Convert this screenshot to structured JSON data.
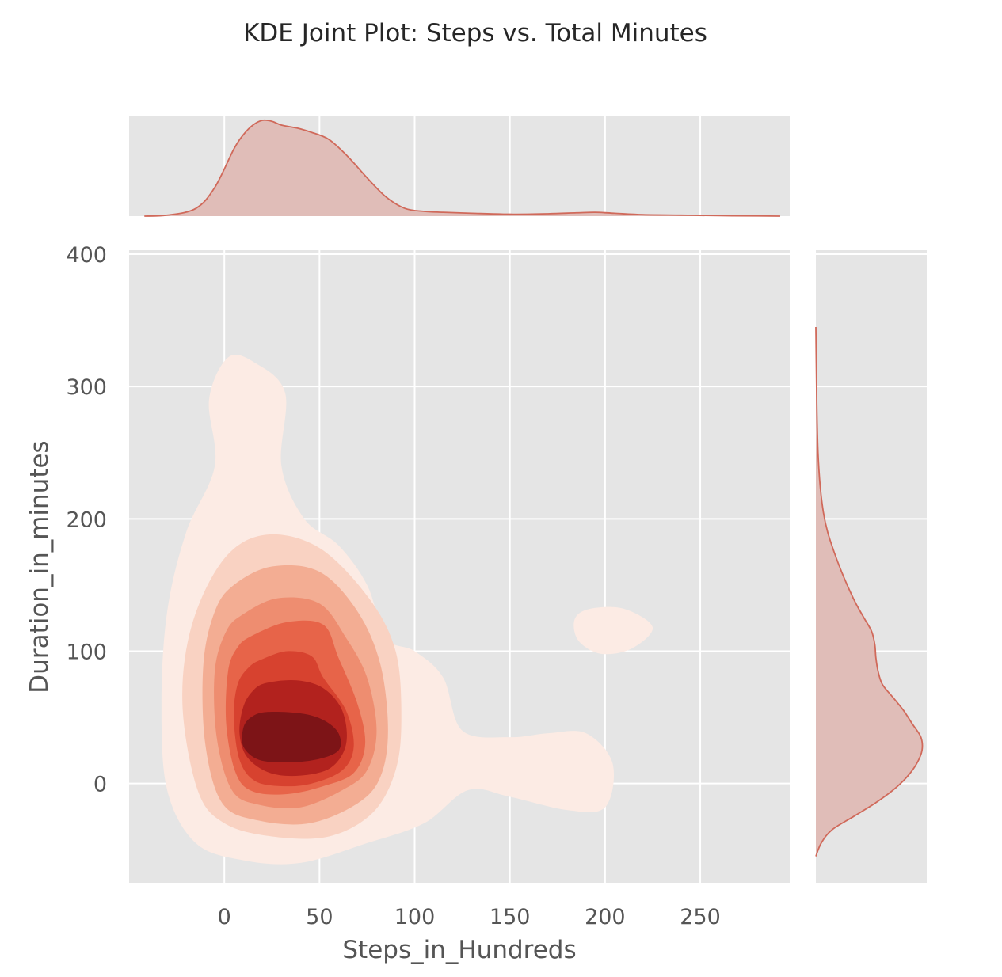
{
  "chart_data": {
    "type": "kde-joint",
    "title": "KDE Joint Plot: Steps vs. Total Minutes",
    "xlabel": "Steps_in_Hundreds",
    "ylabel": "Duration_in_minutes",
    "xlim": [
      -50,
      297
    ],
    "ylim": [
      -75,
      403
    ],
    "xticks": [
      0,
      50,
      100,
      150,
      200,
      250
    ],
    "yticks": [
      0,
      100,
      200,
      300,
      400
    ],
    "grid": true,
    "colors": {
      "panel_bg": "#e5e5e5",
      "grid": "#ffffff",
      "marginal_line": "#d0695a",
      "marginal_fill": "#e0bdb8",
      "levels": [
        "#fcebe4",
        "#f9d2c2",
        "#f3ad93",
        "#ee8d70",
        "#e76449",
        "#d7422f",
        "#b2221e",
        "#7d1417"
      ]
    },
    "joint": {
      "mode_peak": [
        25,
        35
      ],
      "secondary_peak": [
        205,
        118
      ],
      "levels": [
        {
          "level": 1,
          "outline": [
            [
              -8,
              290
            ],
            [
              2,
              322
            ],
            [
              16,
              318
            ],
            [
              32,
              295
            ],
            [
              30,
              240
            ],
            [
              42,
              200
            ],
            [
              60,
              180
            ],
            [
              75,
              150
            ],
            [
              85,
              110
            ],
            [
              100,
              100
            ],
            [
              115,
              80
            ],
            [
              125,
              40
            ],
            [
              150,
              35
            ],
            [
              170,
              38
            ],
            [
              190,
              38
            ],
            [
              204,
              15
            ],
            [
              200,
              -18
            ],
            [
              180,
              -20
            ],
            [
              150,
              -10
            ],
            [
              128,
              -5
            ],
            [
              105,
              -30
            ],
            [
              75,
              -45
            ],
            [
              40,
              -60
            ],
            [
              10,
              -58
            ],
            [
              -15,
              -45
            ],
            [
              -30,
              -5
            ],
            [
              -33,
              60
            ],
            [
              -30,
              130
            ],
            [
              -20,
              190
            ],
            [
              -5,
              240
            ]
          ]
        },
        {
          "level": 1,
          "outline": [
            [
              192,
              132
            ],
            [
              210,
              132
            ],
            [
              225,
              118
            ],
            [
              214,
              102
            ],
            [
              198,
              98
            ],
            [
              186,
              108
            ],
            [
              184,
              124
            ]
          ]
        },
        {
          "level": 2,
          "outline": [
            [
              0,
              170
            ],
            [
              22,
              188
            ],
            [
              50,
              178
            ],
            [
              76,
              140
            ],
            [
              90,
              100
            ],
            [
              93,
              50
            ],
            [
              90,
              10
            ],
            [
              78,
              -22
            ],
            [
              55,
              -40
            ],
            [
              25,
              -40
            ],
            [
              0,
              -30
            ],
            [
              -14,
              -5
            ],
            [
              -22,
              60
            ],
            [
              -17,
              120
            ]
          ]
        },
        {
          "level": 3,
          "outline": [
            [
              5,
              150
            ],
            [
              25,
              164
            ],
            [
              50,
              160
            ],
            [
              70,
              130
            ],
            [
              82,
              90
            ],
            [
              86,
              40
            ],
            [
              82,
              5
            ],
            [
              70,
              -15
            ],
            [
              45,
              -30
            ],
            [
              18,
              -28
            ],
            [
              -1,
              -15
            ],
            [
              -10,
              30
            ],
            [
              -11,
              90
            ],
            [
              -5,
              130
            ]
          ]
        },
        {
          "level": 4,
          "outline": [
            [
              10,
              128
            ],
            [
              28,
              140
            ],
            [
              50,
              136
            ],
            [
              64,
              110
            ],
            [
              75,
              80
            ],
            [
              80,
              40
            ],
            [
              75,
              10
            ],
            [
              62,
              -5
            ],
            [
              40,
              -18
            ],
            [
              18,
              -16
            ],
            [
              4,
              -5
            ],
            [
              -4,
              35
            ],
            [
              -5,
              85
            ],
            [
              1,
              115
            ]
          ]
        },
        {
          "level": 5,
          "outline": [
            [
              15,
              112
            ],
            [
              33,
              122
            ],
            [
              52,
              120
            ],
            [
              60,
              95
            ],
            [
              70,
              60
            ],
            [
              74,
              30
            ],
            [
              68,
              8
            ],
            [
              52,
              -2
            ],
            [
              33,
              -8
            ],
            [
              15,
              -6
            ],
            [
              6,
              8
            ],
            [
              1,
              45
            ],
            [
              2,
              85
            ],
            [
              7,
              103
            ]
          ]
        },
        {
          "level": 6,
          "outline": [
            [
              20,
              94
            ],
            [
              33,
              100
            ],
            [
              46,
              96
            ],
            [
              52,
              80
            ],
            [
              64,
              55
            ],
            [
              68,
              28
            ],
            [
              62,
              10
            ],
            [
              46,
              0
            ],
            [
              30,
              -2
            ],
            [
              16,
              2
            ],
            [
              8,
              18
            ],
            [
              5,
              50
            ],
            [
              7,
              75
            ],
            [
              13,
              88
            ]
          ]
        },
        {
          "level": 7,
          "outline": [
            [
              22,
              76
            ],
            [
              38,
              78
            ],
            [
              52,
              72
            ],
            [
              62,
              55
            ],
            [
              64,
              30
            ],
            [
              56,
              12
            ],
            [
              40,
              6
            ],
            [
              24,
              8
            ],
            [
              12,
              20
            ],
            [
              8,
              38
            ],
            [
              10,
              58
            ],
            [
              15,
              70
            ]
          ]
        },
        {
          "level": 8,
          "outline": [
            [
              22,
              54
            ],
            [
              40,
              53
            ],
            [
              52,
              48
            ],
            [
              60,
              38
            ],
            [
              60,
              25
            ],
            [
              48,
              18
            ],
            [
              32,
              16
            ],
            [
              18,
              18
            ],
            [
              10,
              28
            ],
            [
              10,
              42
            ],
            [
              14,
              50
            ]
          ]
        }
      ]
    },
    "marginal_x": {
      "x": [
        -42,
        -30,
        -15,
        -5,
        5,
        10,
        15,
        20,
        25,
        30,
        38,
        45,
        55,
        65,
        75,
        85,
        95,
        105,
        115,
        130,
        150,
        170,
        185,
        195,
        205,
        220,
        240,
        260,
        280,
        292
      ],
      "density": [
        0.0,
        0.01,
        0.08,
        0.3,
        0.7,
        0.85,
        0.95,
        1.0,
        0.99,
        0.95,
        0.92,
        0.88,
        0.8,
        0.62,
        0.4,
        0.2,
        0.08,
        0.05,
        0.04,
        0.03,
        0.02,
        0.025,
        0.035,
        0.04,
        0.03,
        0.015,
        0.01,
        0.005,
        0.002,
        0.0
      ]
    },
    "marginal_y": {
      "y": [
        -55,
        -45,
        -35,
        -25,
        -15,
        -5,
        5,
        15,
        25,
        35,
        45,
        55,
        65,
        75,
        85,
        95,
        105,
        115,
        125,
        135,
        145,
        160,
        175,
        190,
        205,
        225,
        250,
        280,
        310,
        345
      ],
      "density": [
        0.0,
        0.05,
        0.15,
        0.35,
        0.55,
        0.72,
        0.85,
        0.94,
        0.99,
        0.98,
        0.9,
        0.82,
        0.72,
        0.62,
        0.58,
        0.56,
        0.55,
        0.52,
        0.45,
        0.38,
        0.32,
        0.24,
        0.17,
        0.11,
        0.07,
        0.04,
        0.02,
        0.01,
        0.005,
        0.0
      ]
    }
  }
}
